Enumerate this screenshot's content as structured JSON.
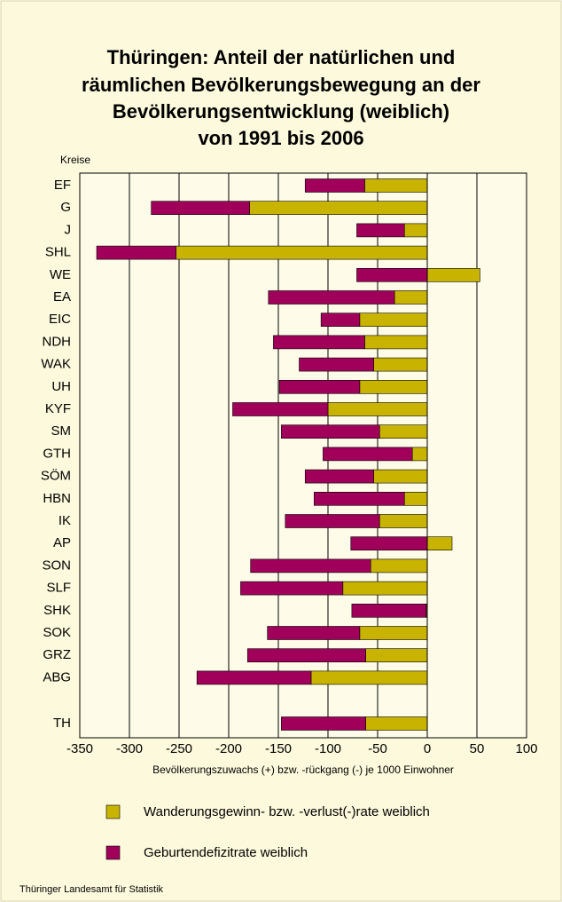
{
  "chart_data": {
    "type": "bar",
    "orientation": "horizontal",
    "stacked": true,
    "title": [
      "Thüringen: Anteil der natürlichen und",
      "räumlichen Bevölkerungsbewegung an der",
      "Bevölkerungsentwicklung (weiblich)",
      "von 1991 bis 2006"
    ],
    "y_label": "Kreise",
    "x_label": "Bevölkerungszuwachs (+) bzw. -rückgang (-) je 1000 Einwohner",
    "source": "Thüringer Landesamt für Statistik",
    "categories": [
      "EF",
      "G",
      "J",
      "SHL",
      "WE",
      "EA",
      "EIC",
      "NDH",
      "WAK",
      "UH",
      "KYF",
      "SM",
      "GTH",
      "SÖM",
      "HBN",
      "IK",
      "AP",
      "SON",
      "SLF",
      "SHK",
      "SOK",
      "GRZ",
      "ABG",
      "TH"
    ],
    "series": [
      {
        "name": "Wanderungsgewinn- bzw. -verlust(-)rate weiblich",
        "color": "#c8b400",
        "values": [
          -63,
          -179,
          -23,
          -253,
          53,
          -33,
          -68,
          -63,
          -54,
          -68,
          -100,
          -48,
          -15,
          -54,
          -23,
          -48,
          25,
          -57,
          -85,
          -1,
          -68,
          -62,
          -117,
          -62
        ]
      },
      {
        "name": "Geburtendefizitrate weiblich",
        "color": "#a0005a",
        "values": [
          -60,
          -99,
          -48,
          -80,
          -71,
          -127,
          -39,
          -92,
          -75,
          -81,
          -96,
          -99,
          -90,
          -69,
          -91,
          -95,
          -77,
          -121,
          -103,
          -75,
          -93,
          -119,
          -115,
          -85
        ]
      }
    ],
    "xlim": [
      -350,
      100
    ],
    "xticks": [
      -350,
      -300,
      -250,
      -200,
      -150,
      -100,
      -50,
      0,
      50,
      100
    ],
    "grid": true
  }
}
